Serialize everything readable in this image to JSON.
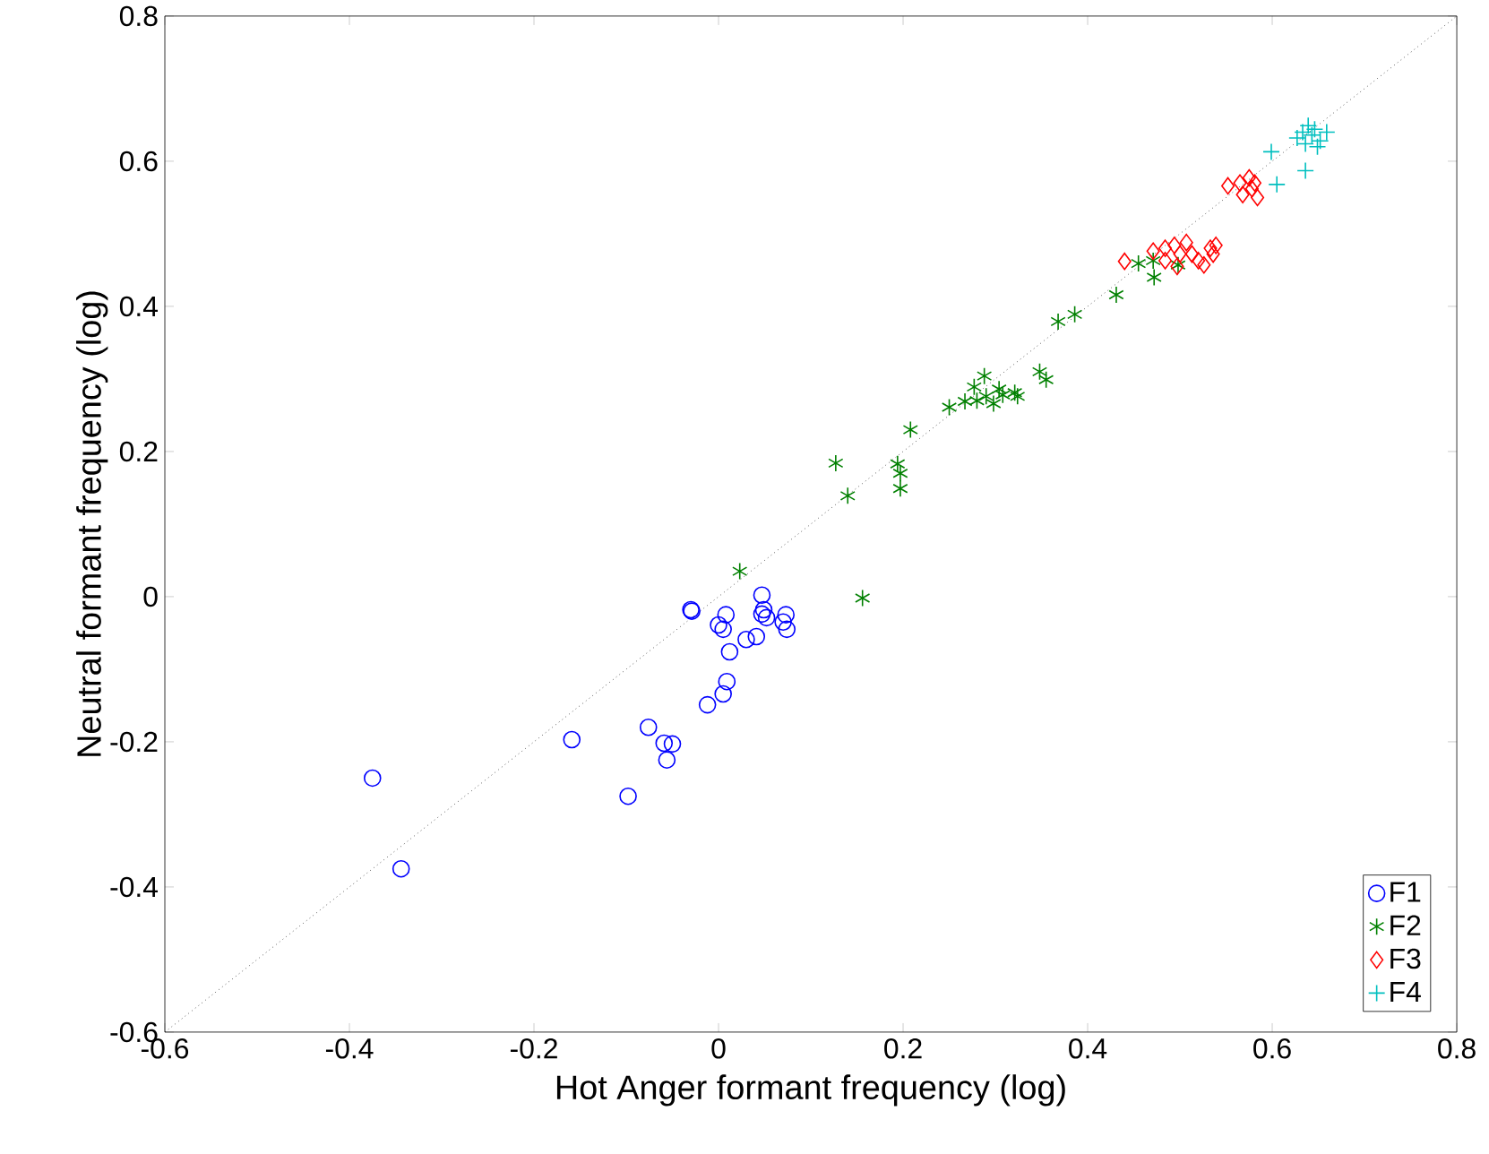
{
  "chart_data": {
    "type": "scatter",
    "xlabel": "Hot Anger formant frequency (log)",
    "ylabel": "Neutral formant frequency (log)",
    "xlim": [
      -0.6,
      0.8
    ],
    "ylim": [
      -0.6,
      0.8
    ],
    "xticks": [
      -0.6,
      -0.4,
      -0.2,
      0,
      0.2,
      0.4,
      0.6,
      0.8
    ],
    "yticks": [
      -0.6,
      -0.4,
      -0.2,
      0,
      0.2,
      0.4,
      0.6,
      0.8
    ],
    "legend": "bottom right",
    "grid": false,
    "series": [
      {
        "type": "line",
        "color": "#000000",
        "line_style": "dotted",
        "marker": "none",
        "x": [
          -0.6,
          0.8
        ],
        "values": [
          -0.6,
          0.8
        ]
      },
      {
        "name": "F1",
        "color": "#0000ff",
        "marker": "circle",
        "x": [
          -0.375,
          -0.344,
          -0.159,
          -0.098,
          -0.076,
          -0.059,
          -0.05,
          -0.056,
          -0.03,
          -0.029,
          -0.012,
          0.005,
          0.009,
          0.012,
          0.0,
          0.005,
          0.008,
          0.03,
          0.041,
          0.047,
          0.049,
          0.052,
          0.047,
          0.073,
          0.07,
          0.074
        ],
        "values": [
          -0.25,
          -0.375,
          -0.197,
          -0.275,
          -0.18,
          -0.202,
          -0.203,
          -0.225,
          -0.018,
          -0.02,
          -0.149,
          -0.134,
          -0.117,
          -0.076,
          -0.039,
          -0.045,
          -0.025,
          -0.059,
          -0.055,
          0.002,
          -0.018,
          -0.029,
          -0.024,
          -0.025,
          -0.035,
          -0.045
        ]
      },
      {
        "name": "F2",
        "color": "#008000",
        "x": [
          0.023,
          0.127,
          0.14,
          0.156,
          0.194,
          0.197,
          0.197,
          0.208,
          0.25,
          0.267,
          0.277,
          0.288,
          0.28,
          0.29,
          0.298,
          0.304,
          0.308,
          0.321,
          0.324,
          0.348,
          0.355,
          0.368,
          0.386,
          0.431,
          0.455,
          0.472,
          0.471,
          0.498
        ],
        "values": [
          0.035,
          0.184,
          0.139,
          -0.002,
          0.183,
          0.17,
          0.149,
          0.23,
          0.261,
          0.269,
          0.289,
          0.304,
          0.27,
          0.276,
          0.266,
          0.286,
          0.278,
          0.281,
          0.276,
          0.31,
          0.299,
          0.379,
          0.389,
          0.416,
          0.459,
          0.44,
          0.463,
          0.457
        ]
      },
      {
        "name": "F3",
        "color": "#ff0000",
        "marker": "diamond",
        "x": [
          0.44,
          0.471,
          0.484,
          0.494,
          0.5,
          0.507,
          0.513,
          0.484,
          0.497,
          0.52,
          0.526,
          0.533,
          0.536,
          0.539,
          0.552,
          0.565,
          0.575,
          0.578,
          0.584,
          0.568,
          0.581
        ],
        "values": [
          0.462,
          0.476,
          0.48,
          0.484,
          0.472,
          0.488,
          0.472,
          0.463,
          0.455,
          0.463,
          0.457,
          0.48,
          0.472,
          0.484,
          0.566,
          0.57,
          0.577,
          0.562,
          0.55,
          0.554,
          0.57
        ]
      },
      {
        "name": "F4",
        "color": "#00bfbf",
        "marker": "cross",
        "x": [
          0.599,
          0.605,
          0.636,
          0.627,
          0.636,
          0.643,
          0.646,
          0.652,
          0.659,
          0.639,
          0.649,
          0.633
        ],
        "values": [
          0.613,
          0.568,
          0.587,
          0.632,
          0.624,
          0.636,
          0.644,
          0.628,
          0.64,
          0.649,
          0.62,
          0.64
        ]
      }
    ]
  }
}
